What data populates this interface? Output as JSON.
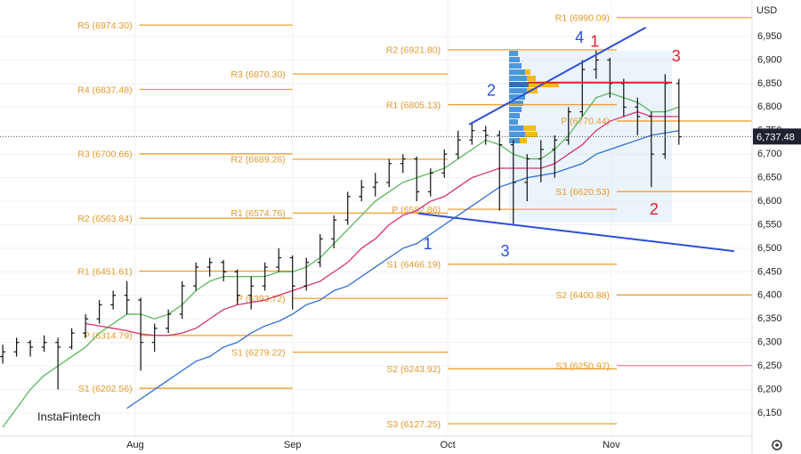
{
  "chart_data": {
    "type": "ohlc",
    "currency": "USD",
    "watermark": "InstaFintech",
    "xlim": [
      -0.2,
      54.3
    ],
    "ylim": [
      6100.8,
      7027.5
    ],
    "xticks": [
      {
        "value": 9.6,
        "label": "Aug"
      },
      {
        "value": 21.0,
        "label": "Sep"
      },
      {
        "value": 32.25,
        "label": "Oct"
      },
      {
        "value": 44.1,
        "label": "Nov"
      }
    ],
    "yticks": [
      {
        "value": 6150,
        "label": "6,150"
      },
      {
        "value": 6200,
        "label": "6,200"
      },
      {
        "value": 6250,
        "label": "6,250"
      },
      {
        "value": 6300,
        "label": "6,300"
      },
      {
        "value": 6350,
        "label": "6,350"
      },
      {
        "value": 6400,
        "label": "6,400"
      },
      {
        "value": 6450,
        "label": "6,450"
      },
      {
        "value": 6500,
        "label": "6,500"
      },
      {
        "value": 6550,
        "label": "6,550"
      },
      {
        "value": 6600,
        "label": "6,600"
      },
      {
        "value": 6650,
        "label": "6,650"
      },
      {
        "value": 6700,
        "label": "6,700"
      },
      {
        "value": 6750,
        "label": "6,750"
      },
      {
        "value": 6800,
        "label": "6,800"
      },
      {
        "value": 6850,
        "label": "6,850"
      },
      {
        "value": 6900,
        "label": "6,900"
      },
      {
        "value": 6950,
        "label": "6,950"
      }
    ],
    "last_price": {
      "value": 6737.48,
      "label": "6,737.48"
    },
    "bar_color": "#111111",
    "ohlc": [
      [
        6270,
        6295,
        6255,
        6280
      ],
      [
        6280,
        6310,
        6270,
        6300
      ],
      [
        6300,
        6305,
        6270,
        6290
      ],
      [
        6290,
        6315,
        6280,
        6300
      ],
      [
        6300,
        6310,
        6200,
        6290
      ],
      [
        6290,
        6330,
        6285,
        6320
      ],
      [
        6320,
        6360,
        6310,
        6350
      ],
      [
        6350,
        6390,
        6340,
        6380
      ],
      [
        6380,
        6410,
        6370,
        6400
      ],
      [
        6400,
        6430,
        6360,
        6390
      ],
      [
        6390,
        6395,
        6240,
        6300
      ],
      [
        6300,
        6340,
        6280,
        6330
      ],
      [
        6330,
        6370,
        6320,
        6360
      ],
      [
        6360,
        6430,
        6350,
        6420
      ],
      [
        6420,
        6470,
        6410,
        6460
      ],
      [
        6460,
        6480,
        6440,
        6470
      ],
      [
        6470,
        6475,
        6430,
        6450
      ],
      [
        6450,
        6455,
        6380,
        6400
      ],
      [
        6400,
        6440,
        6370,
        6420
      ],
      [
        6420,
        6470,
        6410,
        6460
      ],
      [
        6460,
        6500,
        6450,
        6480
      ],
      [
        6480,
        6485,
        6370,
        6420
      ],
      [
        6420,
        6480,
        6410,
        6470
      ],
      [
        6470,
        6530,
        6460,
        6520
      ],
      [
        6520,
        6570,
        6500,
        6560
      ],
      [
        6560,
        6620,
        6550,
        6610
      ],
      [
        6610,
        6645,
        6600,
        6630
      ],
      [
        6630,
        6660,
        6610,
        6640
      ],
      [
        6640,
        6690,
        6630,
        6680
      ],
      [
        6680,
        6700,
        6660,
        6690
      ],
      [
        6690,
        6695,
        6600,
        6620
      ],
      [
        6620,
        6670,
        6610,
        6660
      ],
      [
        6660,
        6710,
        6650,
        6700
      ],
      [
        6700,
        6750,
        6690,
        6730
      ],
      [
        6730,
        6765,
        6720,
        6750
      ],
      [
        6750,
        6760,
        6720,
        6740
      ],
      [
        6740,
        6750,
        6580,
        6720
      ],
      [
        6720,
        6730,
        6550,
        6640
      ],
      [
        6640,
        6700,
        6600,
        6690
      ],
      [
        6690,
        6730,
        6640,
        6710
      ],
      [
        6710,
        6740,
        6650,
        6730
      ],
      [
        6730,
        6800,
        6720,
        6790
      ],
      [
        6790,
        6900,
        6780,
        6880
      ],
      [
        6880,
        6920,
        6860,
        6900
      ],
      [
        6900,
        6905,
        6820,
        6850
      ],
      [
        6850,
        6860,
        6780,
        6800
      ],
      [
        6800,
        6820,
        6740,
        6780
      ],
      [
        6780,
        6790,
        6630,
        6700
      ],
      [
        6700,
        6870,
        6690,
        6850
      ],
      [
        6850,
        6860,
        6720,
        6737
      ]
    ],
    "series": [
      {
        "name": "MA fast",
        "color": "#5cb85c",
        "values": [
          6120,
          6160,
          6200,
          6230,
          6250,
          6270,
          6290,
          6320,
          6340,
          6360,
          6360,
          6350,
          6360,
          6380,
          6410,
          6430,
          6440,
          6440,
          6440,
          6440,
          6450,
          6450,
          6460,
          6480,
          6510,
          6540,
          6570,
          6600,
          6620,
          6640,
          6650,
          6660,
          6670,
          6690,
          6710,
          6730,
          6720,
          6700,
          6690,
          6690,
          6710,
          6740,
          6780,
          6820,
          6830,
          6820,
          6810,
          6790,
          6790,
          6800
        ]
      },
      {
        "name": "MA mid",
        "color": "#d6336c",
        "values": [
          null,
          null,
          null,
          null,
          null,
          null,
          6340,
          6335,
          6330,
          6325,
          6318,
          6315,
          6315,
          6320,
          6330,
          6350,
          6370,
          6380,
          6385,
          6390,
          6400,
          6410,
          6420,
          6430,
          6450,
          6470,
          6500,
          6520,
          6550,
          6570,
          6580,
          6600,
          6610,
          6630,
          6650,
          6660,
          6670,
          6670,
          6670,
          6670,
          6680,
          6700,
          6720,
          6750,
          6770,
          6780,
          6790,
          6780,
          6780,
          6780
        ]
      },
      {
        "name": "MA slow",
        "color": "#2f6fd6",
        "values": [
          null,
          null,
          null,
          null,
          null,
          null,
          null,
          null,
          null,
          6160,
          6180,
          6200,
          6220,
          6240,
          6260,
          6270,
          6290,
          6300,
          6320,
          6335,
          6345,
          6360,
          6380,
          6390,
          6410,
          6420,
          6440,
          6460,
          6480,
          6500,
          6510,
          6530,
          6550,
          6570,
          6590,
          6610,
          6630,
          6640,
          6650,
          6655,
          6660,
          6670,
          6680,
          6700,
          6710,
          6720,
          6730,
          6740,
          6745,
          6750
        ]
      }
    ],
    "pivot_color": "#f0a030",
    "pivots": [
      {
        "label": "R5 (6974.30)",
        "value": 6974.3,
        "start": 9.9,
        "end": 21.0
      },
      {
        "label": "R4 (6837.48)",
        "value": 6837.48,
        "start": 9.9,
        "end": 21.0
      },
      {
        "label": "R3 (6700.66)",
        "value": 6700.66,
        "start": 9.9,
        "end": 21.0
      },
      {
        "label": "R2 (6563.84)",
        "value": 6563.84,
        "start": 9.9,
        "end": 21.0
      },
      {
        "label": "R1 (6451.61)",
        "value": 6451.61,
        "start": 9.9,
        "end": 21.0
      },
      {
        "label": "P (6314.79)",
        "value": 6314.79,
        "start": 9.9,
        "end": 21.0
      },
      {
        "label": "S1 (6202.56)",
        "value": 6202.56,
        "start": 9.9,
        "end": 21.0
      },
      {
        "label": "R3 (6870.30)",
        "value": 6870.3,
        "start": 21.0,
        "end": 32.25
      },
      {
        "label": "R2 (6689.26)",
        "value": 6689.26,
        "start": 21.0,
        "end": 32.25
      },
      {
        "label": "R1 (6574.76)",
        "value": 6574.76,
        "start": 21.0,
        "end": 32.25
      },
      {
        "label": "P (6393.72)",
        "value": 6393.72,
        "start": 21.0,
        "end": 32.25
      },
      {
        "label": "S1 (6279.22)",
        "value": 6279.22,
        "start": 21.0,
        "end": 32.25
      },
      {
        "label": "R2 (6921.80)",
        "value": 6921.8,
        "start": 32.25,
        "end": 44.5
      },
      {
        "label": "R1 (6805.13)",
        "value": 6805.13,
        "start": 32.25,
        "end": 44.5
      },
      {
        "label": "P (6582.86)",
        "value": 6582.86,
        "start": 32.25,
        "end": 44.5
      },
      {
        "label": "S1 (6466.19)",
        "value": 6466.19,
        "start": 32.25,
        "end": 44.5
      },
      {
        "label": "S2 (6243.92)",
        "value": 6243.92,
        "start": 32.25,
        "end": 44.5
      },
      {
        "label": "S3 (6127.25)",
        "value": 6127.25,
        "start": 32.25,
        "end": 44.5
      },
      {
        "label": "R1 (6990.09)",
        "value": 6990.09,
        "start": 44.5,
        "end": 54.3
      },
      {
        "label": "P (6770.44)",
        "value": 6770.44,
        "start": 44.5,
        "end": 54.3
      },
      {
        "label": "S1 (6620.53)",
        "value": 6620.53,
        "start": 44.5,
        "end": 54.3
      },
      {
        "label": "S2 (6400.88)",
        "value": 6400.88,
        "start": 44.5,
        "end": 54.3
      },
      {
        "label": "S3 (6250.97)",
        "value": 6250.97,
        "start": 44.5,
        "end": 54.3
      }
    ],
    "trendlines": [
      {
        "color": "#2b4fd8",
        "x": [
          33.8,
          46.6
        ],
        "y": [
          6763,
          6969
        ]
      },
      {
        "color": "#2b4fd8",
        "x": [
          30.1,
          53.0
        ],
        "y": [
          6574,
          6494
        ]
      },
      {
        "color": "#e0202a",
        "x": [
          38.1,
          48.5
        ],
        "y": [
          6852,
          6852
        ]
      }
    ],
    "zone": {
      "color": "#dbeaf7",
      "x": [
        36.7,
        48.5
      ],
      "y": [
        6555,
        6920
      ]
    },
    "annotations": [
      {
        "text": "1",
        "color": "#2b4fd8",
        "x": 30.8,
        "y": 6507
      },
      {
        "text": "2",
        "color": "#2b4fd8",
        "x": 35.4,
        "y": 6833
      },
      {
        "text": "3",
        "color": "#2b4fd8",
        "x": 36.4,
        "y": 6492
      },
      {
        "text": "4",
        "color": "#2b4fd8",
        "x": 41.8,
        "y": 6946
      },
      {
        "text": "1",
        "color": "#e0202a",
        "x": 42.9,
        "y": 6937
      },
      {
        "text": "3",
        "color": "#e0202a",
        "x": 48.8,
        "y": 6906
      },
      {
        "text": "2",
        "color": "#e0202a",
        "x": 47.2,
        "y": 6581
      }
    ]
  }
}
